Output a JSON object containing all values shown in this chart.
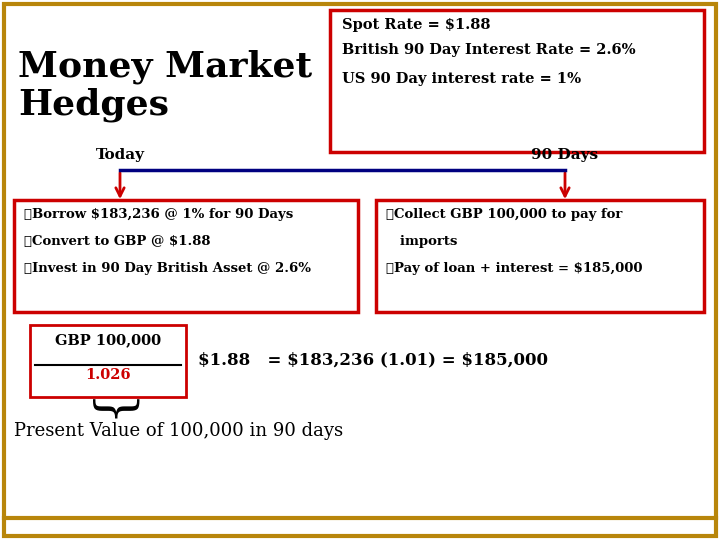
{
  "title_line1": "Money Market",
  "title_line2": "Hedges",
  "info_line1": "Spot Rate = $1.88",
  "info_line2": "British 90 Day Interest Rate = 2.6%",
  "info_line3": "US 90 Day interest rate = 1%",
  "today_label": "Today",
  "days_label": "90 Days",
  "left_bullet1": "➤Borrow $183,236 @ 1% for 90 Days",
  "left_bullet2": "➤Convert to GBP @ $1.88",
  "left_bullet3": "➤Invest in 90 Day British Asset @ 2.6%",
  "right_bullet1": "➤Collect GBP 100,000 to pay for",
  "right_bullet1b": "   imports",
  "right_bullet2": "➤Pay of loan + interest = $185,000",
  "frac_num": "GBP 100,000",
  "frac_den": "1.026",
  "formula_text": "$1.88   = $183,236 (1.01) = $185,000",
  "pv_text": "Present Value of 100,000 in 90 days",
  "bg": "#FFFFFF",
  "gold": "#B8860B",
  "red": "#CC0000",
  "black": "#000000",
  "navy": "#000080"
}
